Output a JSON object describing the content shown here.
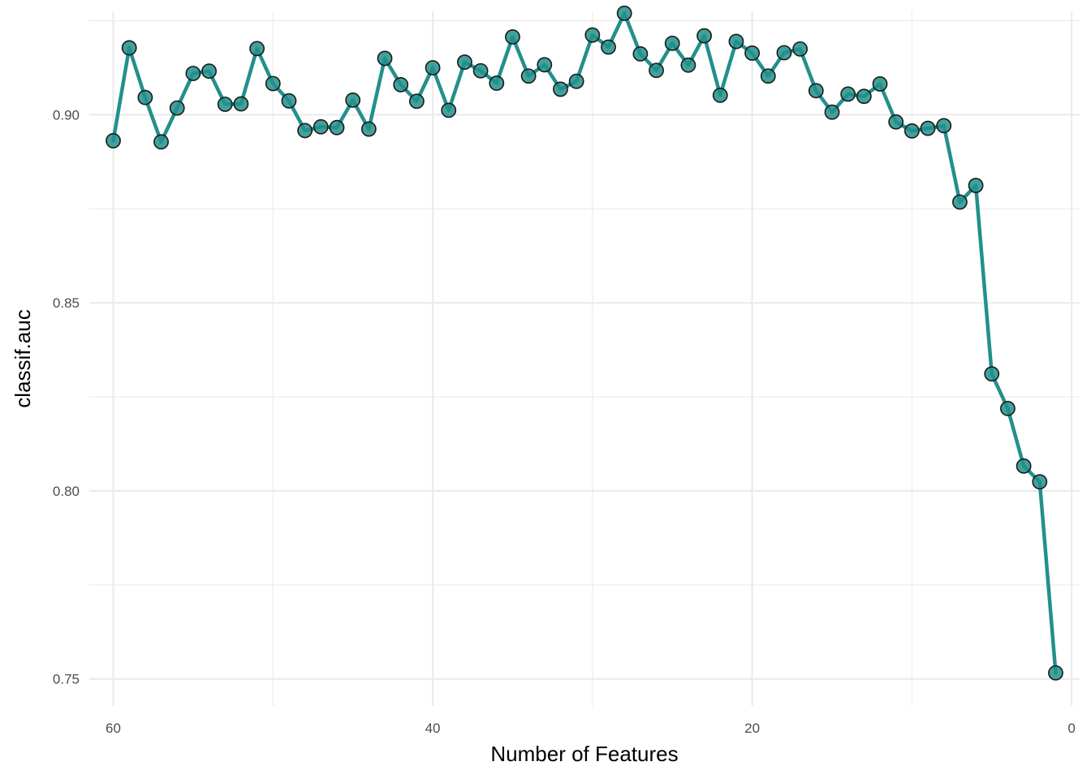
{
  "chart_data": {
    "type": "line",
    "xlabel": "Number of Features",
    "ylabel": "classif.auc",
    "x_reversed": true,
    "xlim": [
      61.5,
      -0.5
    ],
    "ylim": [
      0.7428,
      0.9275
    ],
    "x_ticks": [
      60,
      40,
      20,
      0
    ],
    "x_tick_labels": [
      "60",
      "40",
      "20",
      "0"
    ],
    "x_minor_ticks": [
      50,
      30,
      10
    ],
    "y_ticks": [
      0.75,
      0.8,
      0.85,
      0.9
    ],
    "y_tick_labels": [
      "0.75",
      "0.80",
      "0.85",
      "0.90"
    ],
    "y_minor_ticks": [
      0.775,
      0.825,
      0.875,
      0.925
    ],
    "grid": true,
    "line_color": "#22908c",
    "point_fill": "#22908c",
    "point_stroke": "#1a1a1a",
    "series": [
      {
        "x": [
          60,
          59,
          58,
          57,
          56,
          55,
          54,
          53,
          52,
          51,
          50,
          49,
          48,
          47,
          46,
          45,
          44,
          43,
          42,
          41,
          40,
          39,
          38,
          37,
          36,
          35,
          34,
          33,
          32,
          31,
          30,
          29,
          28,
          27,
          26,
          25,
          24,
          23,
          22,
          21,
          20,
          19,
          18,
          17,
          16,
          15,
          14,
          13,
          12,
          11,
          10,
          9,
          8,
          7,
          6,
          5,
          4,
          3,
          2,
          1
        ],
        "y": [
          0.8931,
          0.9178,
          0.9046,
          0.8928,
          0.9018,
          0.911,
          0.9116,
          0.9028,
          0.9029,
          0.9176,
          0.9083,
          0.9037,
          0.8958,
          0.8968,
          0.8966,
          0.9039,
          0.8962,
          0.915,
          0.908,
          0.9036,
          0.9125,
          0.9012,
          0.914,
          0.9117,
          0.9084,
          0.9207,
          0.9103,
          0.9133,
          0.9068,
          0.9089,
          0.9212,
          0.918,
          0.927,
          0.9162,
          0.9118,
          0.919,
          0.9132,
          0.921,
          0.9052,
          0.9195,
          0.9164,
          0.9103,
          0.9165,
          0.9175,
          0.9064,
          0.9007,
          0.9055,
          0.9049,
          0.9082,
          0.8981,
          0.8957,
          0.8964,
          0.8971,
          0.8768,
          0.8812,
          0.8311,
          0.8219,
          0.8066,
          0.8024,
          0.7516
        ]
      }
    ]
  }
}
